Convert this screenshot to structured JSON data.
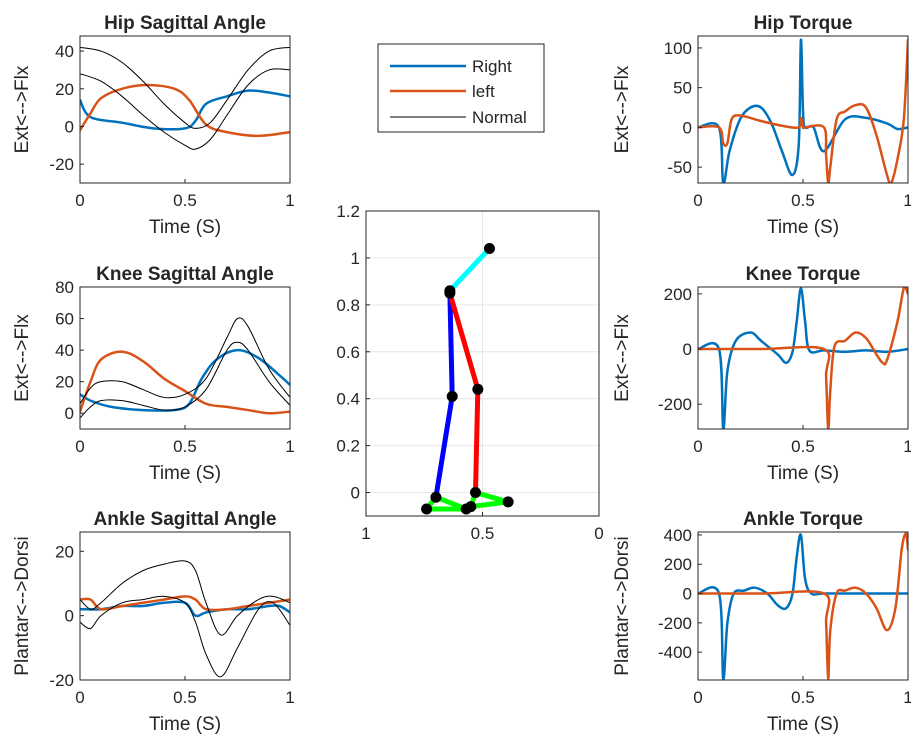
{
  "figure": {
    "colors": {
      "right": "#0072BD",
      "left": "#D95319",
      "normal": "#000000",
      "thigh": "#0000FF",
      "shank": "#FF0000",
      "trunk": "#00FFFF",
      "foot": "#00FF00",
      "joint": "#000000"
    }
  },
  "legend": {
    "entries": [
      "Right",
      "left",
      "Normal"
    ]
  },
  "chart_data": [
    {
      "id": "hip-angle",
      "type": "line",
      "title": "Hip Sagittal Angle",
      "xlabel": "Time (S)",
      "ylabel": "Ext<-->Flx",
      "xlim": [
        0,
        1
      ],
      "ylim": [
        -30,
        48
      ],
      "xticks": [
        0,
        0.5,
        1
      ],
      "xtick_labels": [
        "0",
        "0.5",
        "1"
      ],
      "yticks": [
        -20,
        0,
        20,
        40
      ],
      "ytick_labels": [
        "-20",
        "0",
        "20",
        "40"
      ],
      "series": [
        {
          "name": "Right",
          "x": [
            0,
            0.05,
            0.2,
            0.35,
            0.5,
            0.55,
            0.6,
            0.7,
            0.8,
            0.9,
            1.0
          ],
          "y": [
            14,
            5,
            2,
            -1,
            -1,
            3,
            12,
            16,
            19,
            18,
            16
          ]
        },
        {
          "name": "left",
          "x": [
            0,
            0.05,
            0.1,
            0.2,
            0.32,
            0.45,
            0.52,
            0.6,
            0.7,
            0.85,
            1.0
          ],
          "y": [
            -2,
            7,
            15,
            20,
            22,
            20,
            14,
            1,
            -3,
            -5,
            -3
          ]
        },
        {
          "name": "Normal",
          "x": [
            0,
            0.1,
            0.2,
            0.3,
            0.4,
            0.5,
            0.55,
            0.62,
            0.7,
            0.8,
            0.9,
            1.0
          ],
          "y": [
            42,
            40,
            34,
            24,
            12,
            2,
            -1,
            2,
            14,
            30,
            40,
            42
          ]
        },
        {
          "name": "Normal",
          "x": [
            0,
            0.1,
            0.2,
            0.3,
            0.4,
            0.5,
            0.55,
            0.62,
            0.7,
            0.8,
            0.9,
            1.0
          ],
          "y": [
            28,
            24,
            16,
            6,
            -3,
            -10,
            -12,
            -7,
            6,
            22,
            30,
            30
          ]
        }
      ]
    },
    {
      "id": "knee-angle",
      "type": "line",
      "title": "Knee Sagittal Angle",
      "xlabel": "Time (S)",
      "ylabel": "Ext<-->Flx",
      "xlim": [
        0,
        1
      ],
      "ylim": [
        -10,
        80
      ],
      "xticks": [
        0,
        0.5,
        1
      ],
      "xtick_labels": [
        "0",
        "0.5",
        "1"
      ],
      "yticks": [
        0,
        20,
        40,
        60,
        80
      ],
      "ytick_labels": [
        "0",
        "20",
        "40",
        "60",
        "80"
      ],
      "series": [
        {
          "name": "Right",
          "x": [
            0,
            0.05,
            0.15,
            0.3,
            0.45,
            0.52,
            0.58,
            0.65,
            0.75,
            0.85,
            0.95,
            1.0
          ],
          "y": [
            12,
            8,
            4,
            2,
            2,
            6,
            22,
            34,
            40,
            35,
            24,
            18
          ]
        },
        {
          "name": "left",
          "x": [
            0,
            0.05,
            0.1,
            0.2,
            0.3,
            0.4,
            0.5,
            0.6,
            0.7,
            0.8,
            0.9,
            1.0
          ],
          "y": [
            1,
            20,
            34,
            39,
            33,
            22,
            14,
            6,
            4,
            2,
            0,
            1
          ]
        },
        {
          "name": "Normal",
          "x": [
            0,
            0.05,
            0.1,
            0.2,
            0.3,
            0.4,
            0.5,
            0.6,
            0.7,
            0.75,
            0.8,
            0.9,
            1.0
          ],
          "y": [
            6,
            16,
            20,
            20,
            15,
            10,
            12,
            22,
            48,
            60,
            55,
            28,
            10
          ]
        },
        {
          "name": "Normal",
          "x": [
            0,
            0.05,
            0.1,
            0.2,
            0.3,
            0.4,
            0.5,
            0.6,
            0.7,
            0.75,
            0.8,
            0.9,
            1.0
          ],
          "y": [
            -3,
            4,
            8,
            8,
            5,
            2,
            4,
            15,
            40,
            45,
            40,
            20,
            5
          ]
        }
      ]
    },
    {
      "id": "ankle-angle",
      "type": "line",
      "title": "Ankle Sagittal Angle",
      "xlabel": "Time (S)",
      "ylabel": "Plantar<-->Dorsi",
      "xlim": [
        0,
        1
      ],
      "ylim": [
        -20,
        26
      ],
      "xticks": [
        0,
        0.5,
        1
      ],
      "xtick_labels": [
        "0",
        "0.5",
        "1"
      ],
      "yticks": [
        -20,
        0,
        20
      ],
      "ytick_labels": [
        "-20",
        "0",
        "20"
      ],
      "series": [
        {
          "name": "Right",
          "x": [
            0,
            0.1,
            0.2,
            0.3,
            0.4,
            0.5,
            0.55,
            0.6,
            0.7,
            0.8,
            0.9,
            0.95,
            1.0
          ],
          "y": [
            2,
            2,
            3,
            3,
            4,
            4,
            0,
            1,
            2,
            2,
            3,
            3,
            1
          ]
        },
        {
          "name": "left",
          "x": [
            0,
            0.05,
            0.1,
            0.2,
            0.3,
            0.4,
            0.5,
            0.55,
            0.6,
            0.7,
            0.8,
            0.9,
            1.0
          ],
          "y": [
            5,
            5,
            2,
            3,
            4,
            5,
            6,
            5,
            2,
            2,
            3,
            4,
            5
          ]
        },
        {
          "name": "Normal",
          "x": [
            0,
            0.05,
            0.1,
            0.2,
            0.3,
            0.4,
            0.5,
            0.55,
            0.6,
            0.67,
            0.75,
            0.85,
            0.92,
            1.0
          ],
          "y": [
            5,
            2,
            4,
            10,
            14,
            16,
            17,
            14,
            4,
            -6,
            0,
            5,
            6,
            4
          ]
        },
        {
          "name": "Normal",
          "x": [
            0,
            0.05,
            0.1,
            0.2,
            0.3,
            0.4,
            0.5,
            0.55,
            0.6,
            0.67,
            0.75,
            0.85,
            0.92,
            1.0
          ],
          "y": [
            -2,
            -4,
            0,
            4,
            5,
            6,
            4,
            -2,
            -12,
            -19,
            -10,
            2,
            4,
            -3
          ]
        }
      ]
    },
    {
      "id": "hip-torque",
      "type": "line",
      "title": "Hip Torque",
      "xlabel": "Time (S)",
      "ylabel": "Ext<-->Flx",
      "xlim": [
        0,
        1
      ],
      "ylim": [
        -70,
        115
      ],
      "xticks": [
        0,
        0.5,
        1
      ],
      "xtick_labels": [
        "0",
        "0.5",
        "1"
      ],
      "yticks": [
        -50,
        0,
        50,
        100
      ],
      "ytick_labels": [
        "-50",
        "0",
        "50",
        "100"
      ],
      "series": [
        {
          "name": "Right",
          "x": [
            0,
            0.1,
            0.12,
            0.15,
            0.2,
            0.25,
            0.3,
            0.35,
            0.4,
            0.45,
            0.48,
            0.49,
            0.5,
            0.51,
            0.55,
            0.6,
            0.7,
            0.8,
            0.9,
            0.95,
            1.0
          ],
          "y": [
            0,
            0,
            -70,
            -30,
            10,
            25,
            25,
            5,
            -30,
            -60,
            -20,
            110,
            20,
            0,
            0,
            -30,
            10,
            12,
            5,
            -2,
            0
          ]
        },
        {
          "name": "left",
          "x": [
            0,
            0.1,
            0.12,
            0.14,
            0.16,
            0.2,
            0.3,
            0.4,
            0.48,
            0.49,
            0.5,
            0.51,
            0.6,
            0.61,
            0.62,
            0.63,
            0.66,
            0.7,
            0.75,
            0.8,
            0.85,
            0.9,
            0.92,
            0.95,
            0.98,
            1.0
          ],
          "y": [
            0,
            0,
            -20,
            -20,
            10,
            15,
            8,
            2,
            0,
            12,
            0,
            0,
            0,
            -35,
            -70,
            -50,
            10,
            20,
            28,
            25,
            -10,
            -60,
            -70,
            -40,
            10,
            110
          ]
        }
      ]
    },
    {
      "id": "knee-torque",
      "type": "line",
      "title": "Knee Torque",
      "xlabel": "Time (S)",
      "ylabel": "Ext<-->Flx",
      "xlim": [
        0,
        1
      ],
      "ylim": [
        -290,
        225
      ],
      "xticks": [
        0,
        0.5,
        1
      ],
      "xtick_labels": [
        "0",
        "0.5",
        "1"
      ],
      "yticks": [
        -200,
        0,
        200
      ],
      "ytick_labels": [
        "-200",
        "0",
        "200"
      ],
      "series": [
        {
          "name": "Right",
          "x": [
            0,
            0.1,
            0.12,
            0.14,
            0.18,
            0.25,
            0.3,
            0.38,
            0.42,
            0.45,
            0.47,
            0.49,
            0.51,
            0.53,
            0.6,
            0.7,
            0.8,
            0.9,
            1.0
          ],
          "y": [
            0,
            0,
            -290,
            -80,
            30,
            60,
            30,
            -20,
            -50,
            -10,
            100,
            220,
            100,
            -5,
            -5,
            -10,
            -5,
            -10,
            0
          ]
        },
        {
          "name": "left",
          "x": [
            0,
            0.3,
            0.6,
            0.61,
            0.62,
            0.63,
            0.65,
            0.7,
            0.75,
            0.8,
            0.85,
            0.88,
            0.9,
            0.95,
            0.98,
            1.0
          ],
          "y": [
            0,
            0,
            0,
            -100,
            -290,
            -150,
            10,
            30,
            60,
            40,
            -20,
            -50,
            -40,
            100,
            220,
            200
          ]
        }
      ]
    },
    {
      "id": "ankle-torque",
      "type": "line",
      "title": "Ankle Torque",
      "xlabel": "Time (S)",
      "ylabel": "Plantar<-->Dorsi",
      "xlim": [
        0,
        1
      ],
      "ylim": [
        -590,
        420
      ],
      "xticks": [
        0,
        0.5,
        1
      ],
      "xtick_labels": [
        "0",
        "0.5",
        "1"
      ],
      "yticks": [
        -400,
        -200,
        0,
        200,
        400
      ],
      "ytick_labels": [
        "-400",
        "-200",
        "0",
        "200",
        "400"
      ],
      "series": [
        {
          "name": "Right",
          "x": [
            0,
            0.1,
            0.12,
            0.14,
            0.17,
            0.22,
            0.27,
            0.33,
            0.38,
            0.42,
            0.45,
            0.47,
            0.49,
            0.51,
            0.54,
            0.6,
            0.8,
            1.0
          ],
          "y": [
            0,
            0,
            -580,
            -200,
            0,
            20,
            40,
            0,
            -80,
            -100,
            0,
            250,
            400,
            100,
            0,
            0,
            0,
            0
          ]
        },
        {
          "name": "left",
          "x": [
            0,
            0.3,
            0.6,
            0.61,
            0.62,
            0.63,
            0.66,
            0.7,
            0.75,
            0.8,
            0.85,
            0.9,
            0.94,
            0.97,
            0.99,
            1.0
          ],
          "y": [
            0,
            0,
            0,
            -200,
            -580,
            -250,
            0,
            20,
            40,
            0,
            -100,
            -250,
            -100,
            300,
            410,
            300
          ]
        }
      ]
    },
    {
      "id": "stick-figure",
      "type": "line",
      "title": "",
      "xlim": [
        1,
        0
      ],
      "ylim": [
        -0.1,
        1.2
      ],
      "xticks": [
        1,
        0.5,
        0
      ],
      "xtick_labels": [
        "1",
        "0.5",
        "0"
      ],
      "yticks": [
        0,
        0.2,
        0.4,
        0.6,
        0.8,
        1,
        1.2
      ],
      "ytick_labels": [
        "0",
        "0.2",
        "0.4",
        "0.6",
        "0.8",
        "1",
        "1.2"
      ],
      "segments": [
        {
          "name": "trunk",
          "color_key": "trunk",
          "points": [
            [
              0.64,
              0.86
            ],
            [
              0.47,
              1.04
            ]
          ]
        },
        {
          "name": "right-thigh",
          "color_key": "thigh",
          "points": [
            [
              0.64,
              0.85
            ],
            [
              0.63,
              0.41
            ]
          ]
        },
        {
          "name": "right-shank",
          "color_key": "thigh",
          "points": [
            [
              0.63,
              0.41
            ],
            [
              0.7,
              -0.02
            ]
          ]
        },
        {
          "name": "left-thigh",
          "color_key": "shank",
          "points": [
            [
              0.64,
              0.85
            ],
            [
              0.52,
              0.44
            ]
          ]
        },
        {
          "name": "left-shank",
          "color_key": "shank",
          "points": [
            [
              0.52,
              0.44
            ],
            [
              0.53,
              0.0
            ]
          ]
        },
        {
          "name": "right-foot",
          "color_key": "foot",
          "points": [
            [
              0.7,
              -0.02
            ],
            [
              0.74,
              -0.07
            ],
            [
              0.57,
              -0.07
            ],
            [
              0.7,
              -0.02
            ]
          ]
        },
        {
          "name": "left-foot",
          "color_key": "foot",
          "points": [
            [
              0.53,
              0.0
            ],
            [
              0.39,
              -0.04
            ],
            [
              0.55,
              -0.06
            ],
            [
              0.53,
              0.0
            ]
          ]
        }
      ],
      "joints": [
        [
          0.47,
          1.04
        ],
        [
          0.64,
          0.86
        ],
        [
          0.64,
          0.85
        ],
        [
          0.63,
          0.41
        ],
        [
          0.52,
          0.44
        ],
        [
          0.7,
          -0.02
        ],
        [
          0.74,
          -0.07
        ],
        [
          0.57,
          -0.07
        ],
        [
          0.53,
          0.0
        ],
        [
          0.39,
          -0.04
        ],
        [
          0.55,
          -0.06
        ]
      ]
    }
  ]
}
